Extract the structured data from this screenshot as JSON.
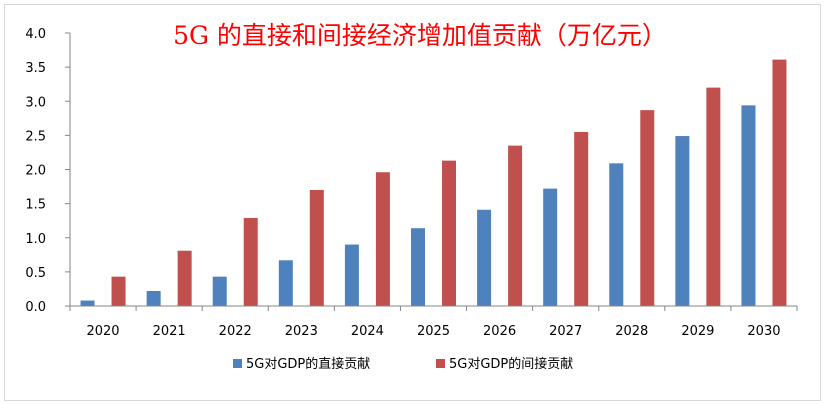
{
  "chart_data": {
    "type": "bar",
    "title": "5G 的直接和间接经济增加值贡献（万亿元）",
    "xlabel": "",
    "ylabel": "",
    "categories": [
      "2020",
      "2021",
      "2022",
      "2023",
      "2024",
      "2025",
      "2026",
      "2027",
      "2028",
      "2029",
      "2030"
    ],
    "series": [
      {
        "name": "5G对GDP的直接贡献",
        "color": "#4f81bd",
        "values": [
          0.08,
          0.22,
          0.43,
          0.67,
          0.9,
          1.14,
          1.41,
          1.72,
          2.09,
          2.49,
          2.94
        ]
      },
      {
        "name": "5G对GDP的间接贡献",
        "color": "#c0504d",
        "values": [
          0.43,
          0.81,
          1.29,
          1.7,
          1.96,
          2.13,
          2.35,
          2.55,
          2.87,
          3.2,
          3.61
        ]
      }
    ],
    "ylim": [
      0,
      4.0
    ],
    "yticks": [
      "0.0",
      "0.5",
      "1.0",
      "1.5",
      "2.0",
      "2.5",
      "3.0",
      "3.5",
      "4.0"
    ],
    "grid": false,
    "legend_position": "bottom"
  }
}
